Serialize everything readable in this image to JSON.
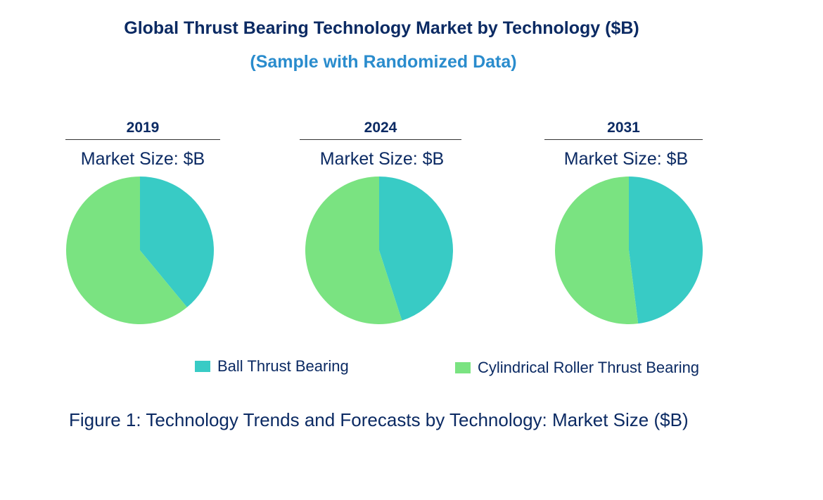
{
  "title": "Global Thrust Bearing Technology Market by Technology ($B)",
  "subtitle": "(Sample with Randomized Data)",
  "caption": "Figure 1: Technology Trends and Forecasts by Technology: Market Size ($B)",
  "colors": {
    "title": "#0b2a63",
    "subtitle": "#2a8ccd"
  },
  "chart_data": [
    {
      "type": "pie",
      "title": "2019",
      "subtitle": "Market Size: $B",
      "categories": [
        "Ball Thrust Bearing",
        "Cylindrical Roller Thrust Bearing"
      ],
      "values": [
        39,
        61
      ],
      "colors": [
        "#38cbc5",
        "#7ae381"
      ],
      "legend": "bottom"
    },
    {
      "type": "pie",
      "title": "2024",
      "subtitle": "Market Size: $B",
      "categories": [
        "Ball Thrust Bearing",
        "Cylindrical Roller Thrust Bearing"
      ],
      "values": [
        45,
        55
      ],
      "colors": [
        "#38cbc5",
        "#7ae381"
      ],
      "legend": "bottom"
    },
    {
      "type": "pie",
      "title": "2031",
      "subtitle": "Market Size: $B",
      "categories": [
        "Ball Thrust Bearing",
        "Cylindrical Roller Thrust Bearing"
      ],
      "values": [
        48,
        52
      ],
      "colors": [
        "#38cbc5",
        "#7ae381"
      ],
      "legend": "bottom"
    }
  ],
  "legend": [
    {
      "label": "Ball Thrust Bearing",
      "color": "#38cbc5"
    },
    {
      "label": "Cylindrical Roller Thrust Bearing",
      "color": "#7ae381"
    }
  ]
}
